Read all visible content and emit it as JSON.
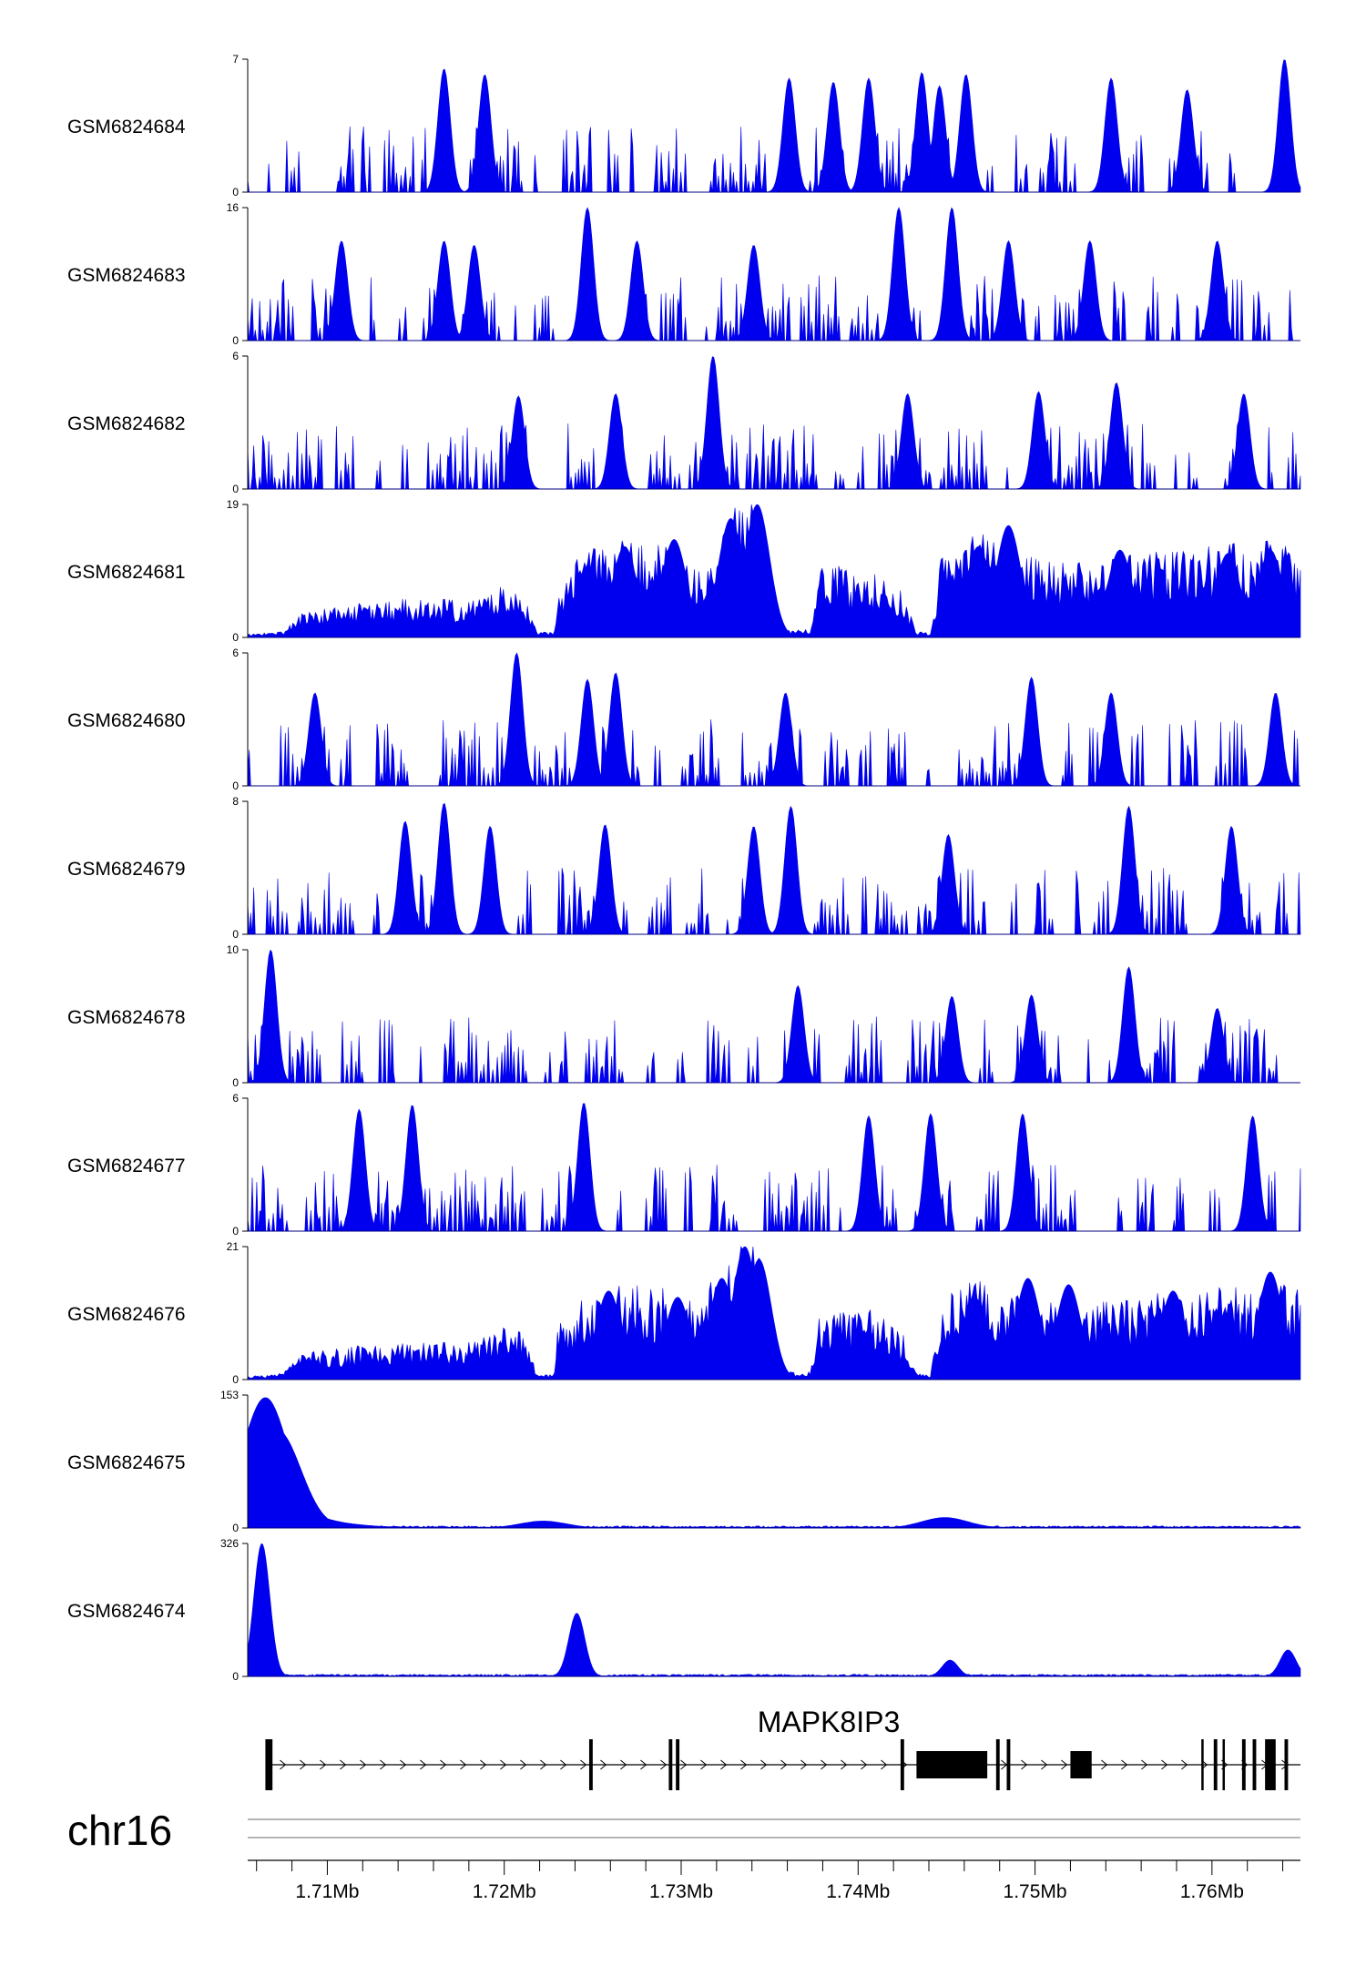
{
  "chart_data": {
    "type": "area",
    "title": "",
    "chrom": "chr16",
    "xlim": [
      1.7055,
      1.765
    ],
    "x_ticks": [
      {
        "value": 1.71,
        "label": "1.71Mb"
      },
      {
        "value": 1.72,
        "label": "1.72Mb"
      },
      {
        "value": 1.73,
        "label": "1.73Mb"
      },
      {
        "value": 1.74,
        "label": "1.74Mb"
      },
      {
        "value": 1.75,
        "label": "1.75Mb"
      },
      {
        "value": 1.76,
        "label": "1.76Mb"
      }
    ],
    "tracks": [
      {
        "name": "GSM6824684",
        "ymax": 7,
        "ymax_label": "7",
        "ymin_label": "0",
        "pattern": "sparse",
        "peaks": [
          [
            1.7166,
            6.5
          ],
          [
            1.7189,
            6.2
          ],
          [
            1.7361,
            6.0
          ],
          [
            1.7386,
            5.8
          ],
          [
            1.7406,
            6.0
          ],
          [
            1.7436,
            6.3
          ],
          [
            1.7461,
            6.2
          ],
          [
            1.7446,
            5.6
          ],
          [
            1.7543,
            6.0
          ],
          [
            1.7586,
            5.4
          ],
          [
            1.7641,
            7.0
          ]
        ]
      },
      {
        "name": "GSM6824683",
        "ymax": 16,
        "ymax_label": "16",
        "ymin_label": "0",
        "pattern": "sparse",
        "peaks": [
          [
            1.7108,
            12.0
          ],
          [
            1.7166,
            12.0
          ],
          [
            1.7183,
            11.5
          ],
          [
            1.7247,
            16.0
          ],
          [
            1.7275,
            12.0
          ],
          [
            1.7341,
            11.5
          ],
          [
            1.7423,
            16.0
          ],
          [
            1.7453,
            16.0
          ],
          [
            1.7485,
            12.0
          ],
          [
            1.7531,
            12.0
          ],
          [
            1.7603,
            12.0
          ]
        ]
      },
      {
        "name": "GSM6824682",
        "ymax": 6,
        "ymax_label": "6",
        "ymin_label": "0",
        "pattern": "sparse",
        "peaks": [
          [
            1.7208,
            4.2
          ],
          [
            1.7263,
            4.3
          ],
          [
            1.7318,
            6.0
          ],
          [
            1.7428,
            4.3
          ],
          [
            1.7502,
            4.4
          ],
          [
            1.7546,
            4.8
          ],
          [
            1.7618,
            4.3
          ]
        ]
      },
      {
        "name": "GSM6824681",
        "ymax": 19,
        "ymax_label": "19",
        "ymin_label": "0",
        "pattern": "broad",
        "peaks": [
          [
            1.7247,
            10.0
          ],
          [
            1.7268,
            13.0
          ],
          [
            1.7296,
            14.0
          ],
          [
            1.7328,
            17.0
          ],
          [
            1.7343,
            19.0
          ],
          [
            1.7468,
            13.0
          ],
          [
            1.7485,
            16.0
          ],
          [
            1.7548,
            12.5
          ],
          [
            1.7609,
            12.0
          ],
          [
            1.7633,
            12.5
          ]
        ]
      },
      {
        "name": "GSM6824680",
        "ymax": 6,
        "ymax_label": "6",
        "ymin_label": "0",
        "pattern": "sparse",
        "peaks": [
          [
            1.7093,
            4.2
          ],
          [
            1.7207,
            6.0
          ],
          [
            1.7247,
            4.8
          ],
          [
            1.7263,
            5.1
          ],
          [
            1.7359,
            4.2
          ],
          [
            1.7498,
            4.9
          ],
          [
            1.7543,
            4.2
          ],
          [
            1.7636,
            4.2
          ]
        ]
      },
      {
        "name": "GSM6824679",
        "ymax": 8,
        "ymax_label": "8",
        "ymin_label": "0",
        "pattern": "sparse",
        "peaks": [
          [
            1.7144,
            6.8
          ],
          [
            1.7166,
            7.9
          ],
          [
            1.7192,
            6.5
          ],
          [
            1.7257,
            6.6
          ],
          [
            1.7341,
            6.5
          ],
          [
            1.7362,
            7.7
          ],
          [
            1.7451,
            6.0
          ],
          [
            1.7553,
            7.7
          ],
          [
            1.7611,
            6.5
          ]
        ]
      },
      {
        "name": "GSM6824678",
        "ymax": 10,
        "ymax_label": "10",
        "ymin_label": "0",
        "pattern": "sparse",
        "peaks": [
          [
            1.7068,
            10.0
          ],
          [
            1.7366,
            7.3
          ],
          [
            1.7453,
            6.5
          ],
          [
            1.7498,
            6.6
          ],
          [
            1.7553,
            8.7
          ],
          [
            1.7603,
            5.6
          ]
        ]
      },
      {
        "name": "GSM6824677",
        "ymax": 6,
        "ymax_label": "6",
        "ymin_label": "0",
        "pattern": "sparse",
        "peaks": [
          [
            1.7118,
            5.5
          ],
          [
            1.7148,
            5.7
          ],
          [
            1.7245,
            5.8
          ],
          [
            1.7406,
            5.2
          ],
          [
            1.7441,
            5.3
          ],
          [
            1.7493,
            5.3
          ],
          [
            1.7623,
            5.2
          ]
        ]
      },
      {
        "name": "GSM6824676",
        "ymax": 21,
        "ymax_label": "21",
        "ymin_label": "0",
        "pattern": "broad",
        "peaks": [
          [
            1.7259,
            14.0
          ],
          [
            1.7298,
            13.0
          ],
          [
            1.7323,
            16.0
          ],
          [
            1.7336,
            21.0
          ],
          [
            1.7344,
            19.0
          ],
          [
            1.7466,
            13.0
          ],
          [
            1.7496,
            16.0
          ],
          [
            1.7519,
            15.0
          ],
          [
            1.7578,
            14.0
          ],
          [
            1.7633,
            17.0
          ]
        ]
      },
      {
        "name": "GSM6824675",
        "ymax": 153,
        "ymax_label": "153",
        "ymin_label": "0",
        "pattern": "focal",
        "peaks": [
          [
            1.7065,
            150.0
          ],
          [
            1.7072,
            112.0
          ],
          [
            1.7222,
            8.0
          ],
          [
            1.7449,
            12.0
          ]
        ]
      },
      {
        "name": "GSM6824674",
        "ymax": 326,
        "ymax_label": "326",
        "ymin_label": "0",
        "pattern": "focal",
        "peaks": [
          [
            1.7063,
            326.0
          ],
          [
            1.7241,
            155.0
          ],
          [
            1.7452,
            40.0
          ],
          [
            1.7643,
            65.0
          ]
        ]
      }
    ],
    "gene": {
      "name": "MAPK8IP3",
      "strand": "+",
      "start": 1.7065,
      "end": 1.765,
      "exons": [
        [
          1.7065,
          1.7069
        ],
        [
          1.7248,
          1.725
        ],
        [
          1.7293,
          1.7295
        ],
        [
          1.7297,
          1.7299
        ],
        [
          1.7424,
          1.7426
        ],
        [
          1.7433,
          1.7473
        ],
        [
          1.7478,
          1.748
        ],
        [
          1.7484,
          1.7486
        ],
        [
          1.752,
          1.7532
        ],
        [
          1.7594,
          1.7595
        ],
        [
          1.7601,
          1.7603
        ],
        [
          1.7606,
          1.7607
        ],
        [
          1.7617,
          1.7619
        ],
        [
          1.7623,
          1.7625
        ],
        [
          1.763,
          1.7636
        ],
        [
          1.7641,
          1.7643
        ]
      ]
    },
    "colors": {
      "signal": "#0000ee",
      "gene": "#000000",
      "axis": "#000000"
    }
  }
}
